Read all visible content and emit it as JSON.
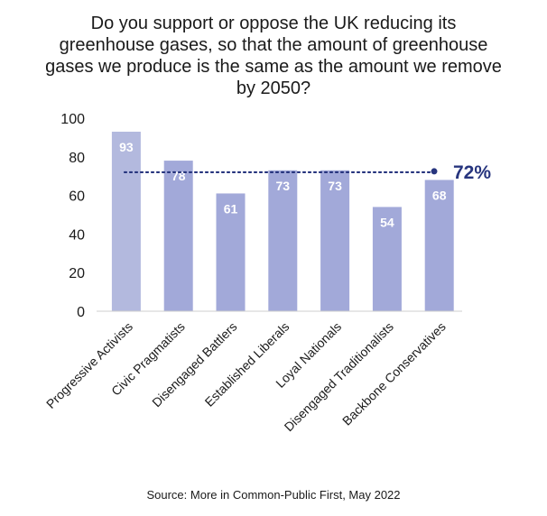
{
  "chart_data": {
    "type": "bar",
    "title": "Do you support or oppose the UK reducing its greenhouse gases, so that the amount of greenhouse gases we produce is the same as the amount we remove by 2050?",
    "categories": [
      "Progressive Activists",
      "Civic Pragmatists",
      "Disengaged Battlers",
      "Established Liberals",
      "Loyal Nationals",
      "Disengaged Traditionalists",
      "Backbone Conservatives"
    ],
    "values": [
      93,
      78,
      61,
      73,
      73,
      54,
      68
    ],
    "data_labels": [
      "93",
      "78",
      "61",
      "73",
      "73",
      "54",
      "68"
    ],
    "ylim": [
      0,
      100
    ],
    "yticks": [
      0,
      20,
      40,
      60,
      80,
      100
    ],
    "xlabel": "",
    "ylabel": "",
    "reference_line": {
      "value": 72,
      "label": "72%"
    },
    "colors": {
      "first_bar": "#b3b9de",
      "bar": "#a2a9d9",
      "reference": "#27357e",
      "text": "#1a1a1a"
    }
  },
  "source": "Source: More in Common-Public First, May 2022"
}
